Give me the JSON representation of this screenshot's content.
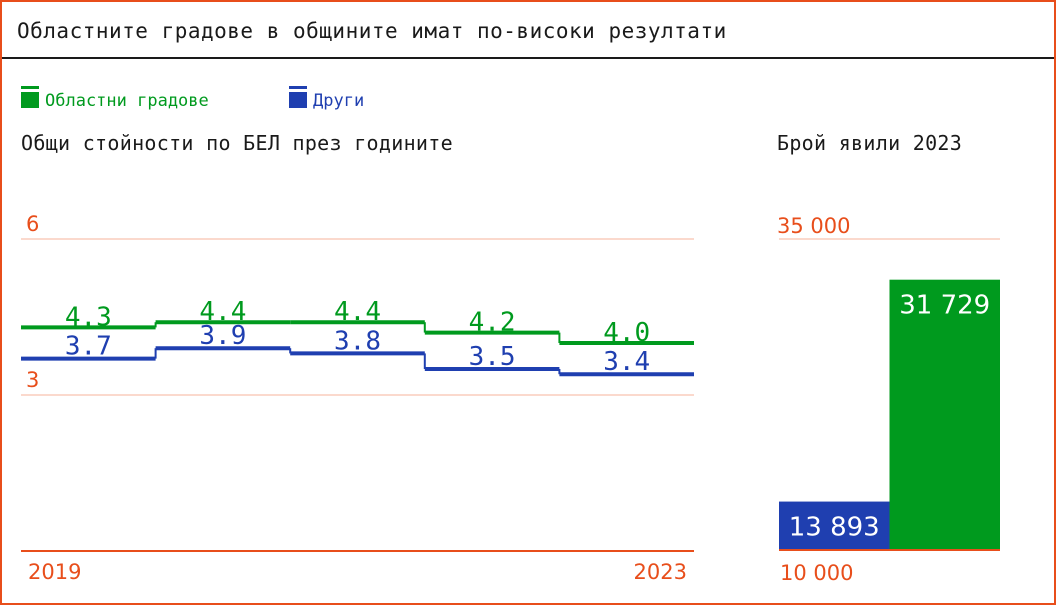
{
  "title": "Областните градове в общините имат по-високи резултати",
  "legend": [
    {
      "label": "Областни градове",
      "color": "#009a1e"
    },
    {
      "label": "Други",
      "color": "#1f3fb0"
    }
  ],
  "colors": {
    "accent": "#e84e1b",
    "grid": "#fbd9cd",
    "green": "#009a1e",
    "blue": "#1f3fb0"
  },
  "chart_data": [
    {
      "type": "line",
      "title": "Общи стойности по БЕЛ през годините",
      "x": [
        2019,
        2020,
        2021,
        2022,
        2023
      ],
      "x_tick_labels": [
        "2019",
        "2023"
      ],
      "y_tick_labels": [
        "6",
        "3"
      ],
      "ylim": [
        0,
        6
      ],
      "grid": true,
      "series": [
        {
          "name": "Областни градове",
          "values": [
            4.3,
            4.4,
            4.4,
            4.2,
            4.0
          ],
          "labels": [
            "4.3",
            "4.4",
            "4.4",
            "4.2",
            "4.0"
          ]
        },
        {
          "name": "Други",
          "values": [
            3.7,
            3.9,
            3.8,
            3.5,
            3.4
          ],
          "labels": [
            "3.7",
            "3.9",
            "3.8",
            "3.5",
            "3.4"
          ]
        }
      ]
    },
    {
      "type": "bar",
      "title": "Брой явили 2023",
      "categories": [
        "Други",
        "Областни градове"
      ],
      "values": [
        13893,
        31729
      ],
      "value_labels": [
        "13 893",
        "31 729"
      ],
      "ylim": [
        10000,
        35000
      ],
      "y_tick_labels": [
        "35 000",
        "10 000"
      ],
      "grid": true
    }
  ]
}
